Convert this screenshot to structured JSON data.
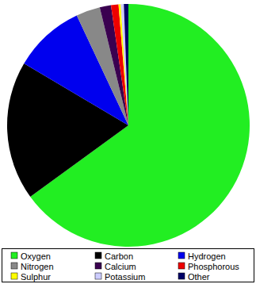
{
  "chart_data": {
    "type": "pie",
    "categories": [
      "Oxygen",
      "Carbon",
      "Hydrogen",
      "Nitrogen",
      "Calcium",
      "Phosphorous",
      "Sulphur",
      "Potassium",
      "Other"
    ],
    "values": [
      65,
      18.5,
      9.5,
      3.2,
      1.5,
      1.0,
      0.3,
      0.4,
      0.6
    ],
    "colors": [
      "#22ee22",
      "#000000",
      "#0000ee",
      "#888888",
      "#3a0050",
      "#ee0000",
      "#ffff00",
      "#ccccff",
      "#000066"
    ],
    "legend": "bottom"
  }
}
